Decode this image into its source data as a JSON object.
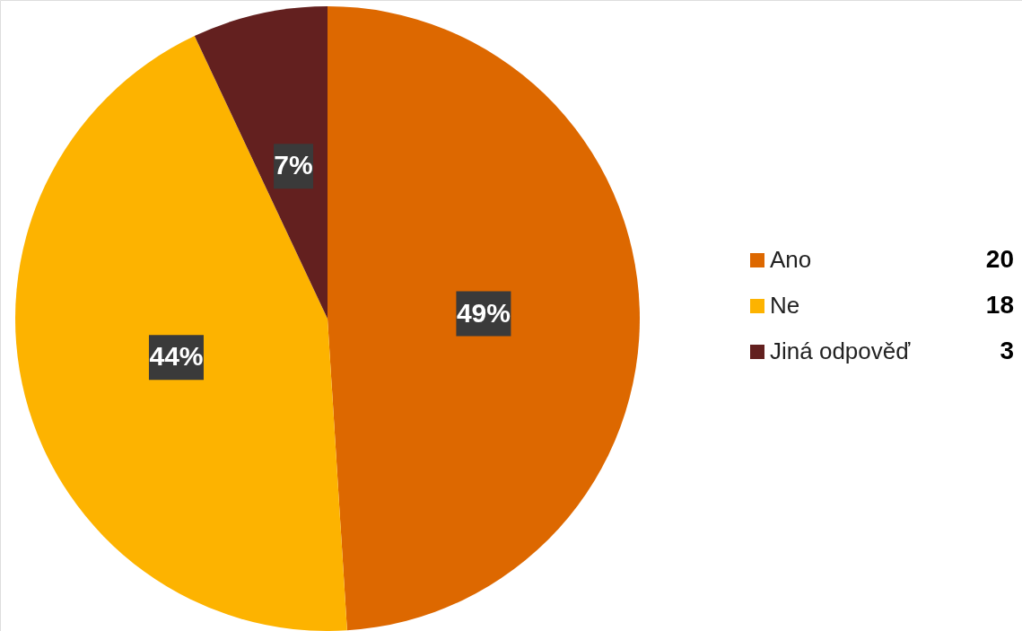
{
  "chart_data": {
    "type": "pie",
    "categories": [
      "Ano",
      "Ne",
      "Jiná odpověď"
    ],
    "values": [
      49,
      44,
      7
    ],
    "colors": [
      "#dd6800",
      "#fdb300",
      "#63201f"
    ],
    "value_labels": [
      "49%",
      "44%",
      "7%"
    ],
    "annotations": [
      "20",
      "18",
      "3"
    ],
    "legend": "right"
  }
}
